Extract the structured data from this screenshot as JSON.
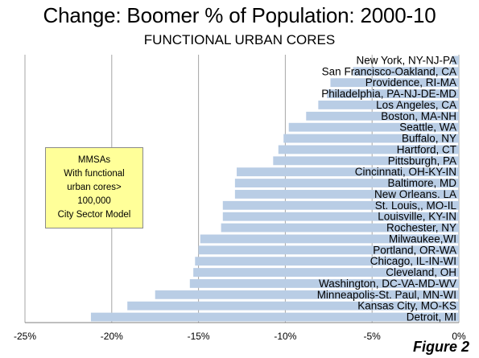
{
  "chart_data": {
    "type": "bar",
    "orientation": "horizontal",
    "title": "Change: Boomer % of Population: 2000-10",
    "subtitle": "FUNCTIONAL URBAN CORES",
    "categories": [
      "New York, NY-NJ-PA",
      "San Francisco-Oakland, CA",
      "Providence, RI-MA",
      "Philadelphia, PA-NJ-DE-MD",
      "Los Angeles, CA",
      "Boston, MA-NH",
      "Seattle, WA",
      "Buffalo, NY",
      "Hartford, CT",
      "Pittsburgh, PA",
      "Cincinnati, OH-KY-IN",
      "Baltimore, MD",
      "New Orleans. LA",
      "St. Louis,, MO-IL",
      "Louisville, KY-IN",
      "Rochester, NY",
      "Milwaukee,WI",
      "Portland, OR-WA",
      "Chicago, IL-IN-WI",
      "Cleveland, OH",
      "Washington, DC-VA-MD-WV",
      "Minneapolis-St. Paul, MN-WI",
      "Kansas City, MO-KS",
      "Detroit,  MI"
    ],
    "values": [
      -0.4,
      -6.1,
      -7.4,
      -7.6,
      -8.1,
      -8.8,
      -9.8,
      -10.1,
      -10.4,
      -10.7,
      -12.8,
      -12.9,
      -12.9,
      -13.6,
      -13.6,
      -13.7,
      -14.9,
      -15.0,
      -15.2,
      -15.3,
      -15.5,
      -17.5,
      -19.1,
      -21.2
    ],
    "xlim": [
      -25,
      0
    ],
    "xticks": [
      "-25%",
      "-20%",
      "-15%",
      "-10%",
      "-5%",
      "0%"
    ],
    "grid": "vertical",
    "bar_color": "#b9cde5"
  },
  "legend_box": {
    "lines": [
      "MMSAs",
      "With functional",
      "urban cores>",
      "100,000",
      "City Sector Model"
    ]
  },
  "figure_label": "Figure 2"
}
